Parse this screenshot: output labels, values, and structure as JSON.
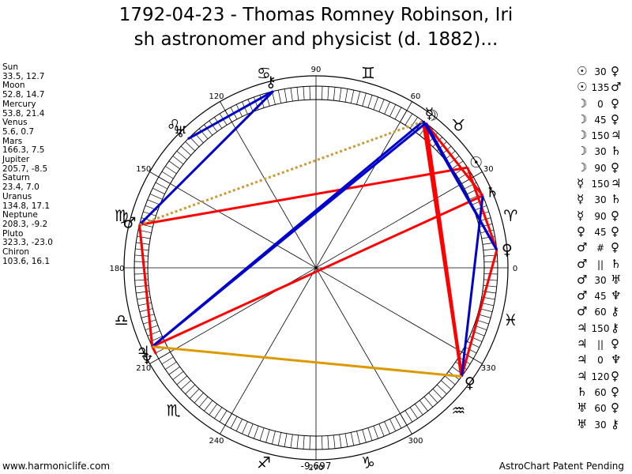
{
  "title": {
    "line1": "1792-04-23 - Thomas Romney Robinson, Iri",
    "line2": "sh astronomer and physicist (d. 1882)..."
  },
  "planets": [
    {
      "name": "Sun",
      "pos": "33.5, 12.7",
      "lon": 33.5,
      "glyph": "☉"
    },
    {
      "name": "Moon",
      "pos": "52.8, 14.7",
      "lon": 52.8,
      "glyph": "☽"
    },
    {
      "name": "Mercury",
      "pos": "53.8, 21.4",
      "lon": 53.8,
      "glyph": "☿"
    },
    {
      "name": "Venus",
      "pos": "5.6, 0.7",
      "lon": 5.6,
      "glyph": "♀"
    },
    {
      "name": "Mars",
      "pos": "166.3, 7.5",
      "lon": 166.3,
      "glyph": "♂"
    },
    {
      "name": "Jupiter",
      "pos": "205.7, -8.5",
      "lon": 205.7,
      "glyph": "♃"
    },
    {
      "name": "Saturn",
      "pos": "23.4, 7.0",
      "lon": 23.4,
      "glyph": "♄"
    },
    {
      "name": "Uranus",
      "pos": "134.8, 17.1",
      "lon": 134.8,
      "glyph": "♅"
    },
    {
      "name": "Neptune",
      "pos": "208.3, -9.2",
      "lon": 208.3,
      "glyph": "♆"
    },
    {
      "name": "Pluto",
      "pos": "323.3, -23.0",
      "lon": 323.3,
      "glyph": "♀"
    },
    {
      "name": "Chiron",
      "pos": "103.6, 16.1",
      "lon": 103.6,
      "glyph": "⚷"
    }
  ],
  "aspects": [
    {
      "p1": "☉",
      "angle": "30",
      "p2": "♀"
    },
    {
      "p1": "☉",
      "angle": "135",
      "p2": "♂"
    },
    {
      "p1": "☽",
      "angle": "0",
      "p2": "♀"
    },
    {
      "p1": "☽",
      "angle": "45",
      "p2": "♀"
    },
    {
      "p1": "☽",
      "angle": "150",
      "p2": "♃"
    },
    {
      "p1": "☽",
      "angle": "30",
      "p2": "♄"
    },
    {
      "p1": "☽",
      "angle": "90",
      "p2": "♀"
    },
    {
      "p1": "☿",
      "angle": "150",
      "p2": "♃"
    },
    {
      "p1": "☿",
      "angle": "30",
      "p2": "♄"
    },
    {
      "p1": "☿",
      "angle": "90",
      "p2": "♀"
    },
    {
      "p1": "♀",
      "angle": "45",
      "p2": "♀"
    },
    {
      "p1": "♂",
      "angle": "#",
      "p2": "♀"
    },
    {
      "p1": "♂",
      "angle": "||",
      "p2": "♄"
    },
    {
      "p1": "♂",
      "angle": "30",
      "p2": "♅"
    },
    {
      "p1": "♂",
      "angle": "45",
      "p2": "♆"
    },
    {
      "p1": "♂",
      "angle": "60",
      "p2": "⚷"
    },
    {
      "p1": "♃",
      "angle": "150",
      "p2": "⚷"
    },
    {
      "p1": "♃",
      "angle": "||",
      "p2": "♀"
    },
    {
      "p1": "♃",
      "angle": "0",
      "p2": "♆"
    },
    {
      "p1": "♃",
      "angle": "120",
      "p2": "♀"
    },
    {
      "p1": "♄",
      "angle": "60",
      "p2": "♀"
    },
    {
      "p1": "♅",
      "angle": "60",
      "p2": "♀"
    },
    {
      "p1": "♅",
      "angle": "30",
      "p2": "⚷"
    }
  ],
  "degree_labels": [
    "0",
    "30",
    "60",
    "90",
    "120",
    "150",
    "180",
    "210",
    "240",
    "270",
    "300",
    "330"
  ],
  "zodiac": [
    "♈",
    "♉",
    "♊",
    "♋",
    "♌",
    "♍",
    "♎",
    "♏",
    "♐",
    "♑",
    "♒",
    "♓"
  ],
  "aspect_lines": [
    {
      "from": "Moon",
      "to": "Pluto",
      "color": "#ff0000",
      "kind": "thick"
    },
    {
      "from": "Mercury",
      "to": "Pluto",
      "color": "#ff0000",
      "kind": "thick"
    },
    {
      "from": "Mars",
      "to": "Sun",
      "color": "#ff0000",
      "kind": "normal"
    },
    {
      "from": "Jupiter",
      "to": "Saturn",
      "color": "#ff0000",
      "kind": "normal"
    },
    {
      "from": "Jupiter",
      "to": "Mars",
      "color": "#ff0000",
      "kind": "normal"
    },
    {
      "from": "Jupiter",
      "to": "Neptune",
      "color": "#ff0000",
      "kind": "normal"
    },
    {
      "from": "Moon",
      "to": "Saturn",
      "color": "#ff0000",
      "kind": "normal"
    },
    {
      "from": "Sun",
      "to": "Venus",
      "color": "#ff0000",
      "kind": "normal"
    },
    {
      "from": "Venus",
      "to": "Pluto",
      "color": "#ff0000",
      "kind": "normal"
    },
    {
      "from": "Moon",
      "to": "Venus",
      "color": "#0000cc",
      "kind": "normal"
    },
    {
      "from": "Moon",
      "to": "Jupiter",
      "color": "#0000cc",
      "kind": "normal"
    },
    {
      "from": "Mercury",
      "to": "Jupiter",
      "color": "#0000cc",
      "kind": "normal"
    },
    {
      "from": "Mercury",
      "to": "Venus",
      "color": "#0000cc",
      "kind": "normal"
    },
    {
      "from": "Saturn",
      "to": "Pluto",
      "color": "#0000cc",
      "kind": "normal"
    },
    {
      "from": "Mars",
      "to": "Chiron",
      "color": "#0000cc",
      "kind": "normal"
    },
    {
      "from": "Uranus",
      "to": "Chiron",
      "color": "#0000cc",
      "kind": "normal"
    },
    {
      "from": "Jupiter",
      "to": "Pluto",
      "color": "#dd9900",
      "kind": "normal"
    },
    {
      "from": "Mars",
      "to": "Mercury",
      "color": "#cc9933",
      "kind": "dotted"
    },
    {
      "from": "Mars",
      "to": "Jupiter",
      "color": "#ff0000",
      "kind": "dotted"
    }
  ],
  "footer": {
    "site": "www.harmoniclife.com",
    "center": "-9,697",
    "patent": "AstroChart Patent Pending"
  }
}
